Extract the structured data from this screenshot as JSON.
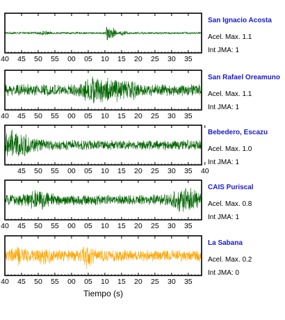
{
  "chart_data": {
    "type": "line",
    "xlabel": "Tiempo (s)",
    "title_color": "#1a1acc",
    "panels": [
      {
        "station": "San Ignacio Acosta",
        "accel_label": "Acel. Max. 1.1",
        "jma_label": "Int JMA: 1",
        "color": "#006400",
        "tick_labels": [
          "40",
          "45",
          "50",
          "55",
          "00",
          "05",
          "10",
          "15",
          "20",
          "25",
          "30",
          "35"
        ],
        "tick_offset_s": 0,
        "noise_level": 0.06,
        "bursts": [
          {
            "t": 31.0,
            "amp": 0.55,
            "width": 0.6
          },
          {
            "t": 32.5,
            "amp": 0.3,
            "width": 0.8
          },
          {
            "t": 12.0,
            "amp": 0.08,
            "width": 1.5
          },
          {
            "t": 35.5,
            "amp": 0.12,
            "width": 1.0
          }
        ]
      },
      {
        "station": "San Rafael Oreamuno",
        "accel_label": "Acel. Max. 1.1",
        "jma_label": "Int JMA: 1",
        "color": "#006400",
        "tick_labels": [
          "40",
          "45",
          "50",
          "55",
          "00",
          "05",
          "10",
          "15",
          "20",
          "25",
          "30",
          "35"
        ],
        "tick_offset_s": 0,
        "noise_level": 0.35,
        "bursts": [
          {
            "t": 26.0,
            "amp": 0.5,
            "width": 2.5
          },
          {
            "t": 31.0,
            "amp": 0.45,
            "width": 3.0
          },
          {
            "t": 37.0,
            "amp": 0.3,
            "width": 4.0
          }
        ]
      },
      {
        "station": "Bebedero, Escazu",
        "accel_label": "Acel. Max. 1.0",
        "jma_label": "Int JMA: 1",
        "color": "#006400",
        "tick_labels": [
          "45",
          "50",
          "55",
          "00",
          "05",
          "10",
          "15",
          "20",
          "25",
          "30",
          "35",
          "40"
        ],
        "tick_offset_s": 5,
        "noise_level": 0.3,
        "bursts": [
          {
            "t": 1.5,
            "amp": 0.55,
            "width": 3.0
          },
          {
            "t": 6.0,
            "amp": 0.3,
            "width": 4.0
          }
        ]
      },
      {
        "station": "CAIS Puriscal",
        "accel_label": "Acel. Max. 0.8",
        "jma_label": "Int JMA: 1",
        "color": "#006400",
        "tick_labels": [
          "40",
          "45",
          "50",
          "55",
          "00",
          "05",
          "10",
          "15",
          "20",
          "25",
          "30",
          "35"
        ],
        "tick_offset_s": 0,
        "noise_level": 0.3,
        "bursts": [
          {
            "t": 54.0,
            "amp": 0.5,
            "width": 4.0
          },
          {
            "t": 10.0,
            "amp": 0.3,
            "width": 4.0
          }
        ]
      },
      {
        "station": "La Sabana",
        "accel_label": "Acel. Max. 0.2",
        "jma_label": "Int JMA: 0",
        "color": "#ffa500",
        "tick_labels": [
          "40",
          "45",
          "50",
          "55",
          "00",
          "05",
          "10",
          "15",
          "20",
          "25",
          "30",
          "35"
        ],
        "tick_offset_s": 0,
        "noise_level": 0.35,
        "bursts": [
          {
            "t": 25.0,
            "amp": 0.45,
            "width": 1.5
          },
          {
            "t": 4.0,
            "amp": 0.25,
            "width": 2.0
          },
          {
            "t": 12.0,
            "amp": 0.25,
            "width": 2.0
          }
        ]
      }
    ]
  }
}
